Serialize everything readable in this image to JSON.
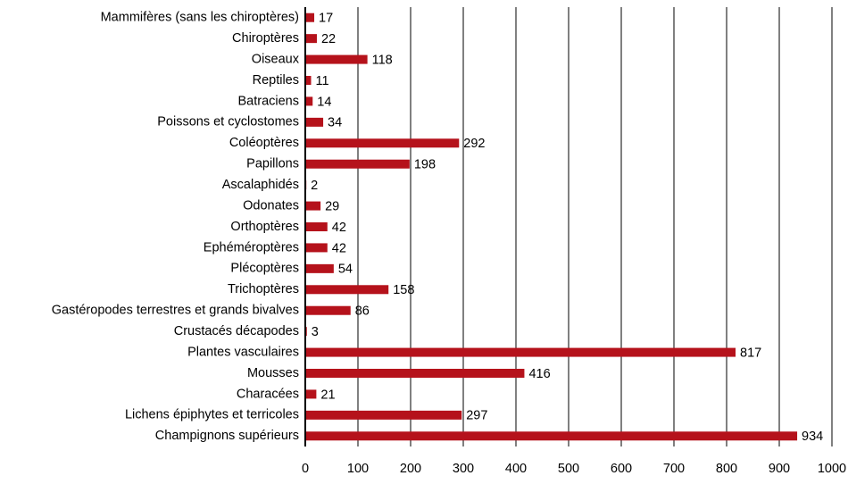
{
  "chart_data": {
    "type": "bar",
    "categories": [
      "Mammifères (sans les chiroptères)",
      "Chiroptères",
      "Oiseaux",
      "Reptiles",
      "Batraciens",
      "Poissons et cyclostomes",
      "Coléoptères",
      "Papillons",
      "Ascalaphidés",
      "Odonates",
      "Orthoptères",
      "Ephéméroptères",
      "Plécoptères",
      "Trichoptères",
      "Gastéropodes terrestres et grands bivalves",
      "Crustacés décapodes",
      "Plantes vasculaires",
      "Mousses",
      "Characées",
      "Lichens épiphytes et terricoles",
      "Champignons supérieurs"
    ],
    "values": [
      17,
      22,
      118,
      11,
      14,
      34,
      292,
      198,
      2,
      29,
      42,
      42,
      54,
      158,
      86,
      3,
      817,
      416,
      21,
      297,
      934
    ],
    "color": "#b5121b",
    "xlim": [
      0,
      1000
    ],
    "xticks": [
      0,
      100,
      200,
      300,
      400,
      500,
      600,
      700,
      800,
      900,
      1000
    ],
    "grid": true
  }
}
